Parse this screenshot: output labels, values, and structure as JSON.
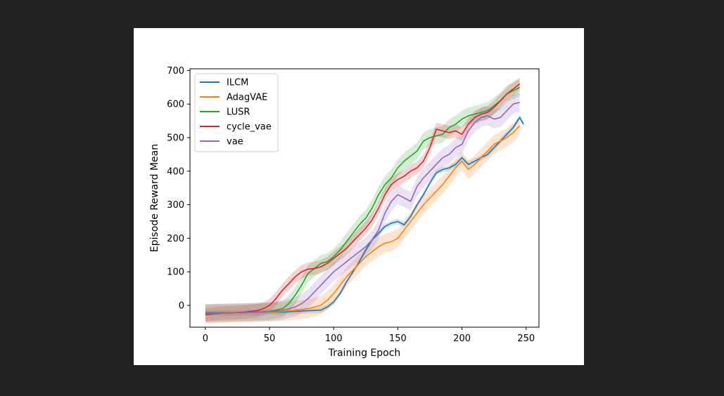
{
  "chart_data": {
    "type": "line",
    "title": "",
    "xlabel": "Training Epoch",
    "ylabel": "Episode Reward Mean",
    "xlim": [
      -12,
      260
    ],
    "ylim": [
      -65,
      705
    ],
    "xticks": [
      0,
      50,
      100,
      150,
      200,
      250
    ],
    "yticks": [
      0,
      100,
      200,
      300,
      400,
      500,
      600,
      700
    ],
    "grid": false,
    "legend_position": "top-left",
    "series": [
      {
        "name": "ILCM",
        "color": "#1f77b4",
        "band": 8,
        "x": [
          0,
          10,
          20,
          30,
          40,
          50,
          60,
          70,
          80,
          90,
          95,
          100,
          105,
          110,
          115,
          120,
          125,
          130,
          135,
          140,
          145,
          150,
          155,
          160,
          165,
          170,
          175,
          180,
          185,
          190,
          195,
          200,
          205,
          210,
          215,
          220,
          225,
          230,
          235,
          240,
          245,
          248
        ],
        "y": [
          -22,
          -22,
          -23,
          -22,
          -21,
          -20,
          -20,
          -18,
          -16,
          -14,
          -5,
          10,
          35,
          70,
          100,
          130,
          165,
          195,
          215,
          235,
          245,
          250,
          240,
          265,
          300,
          330,
          365,
          395,
          405,
          410,
          420,
          440,
          420,
          430,
          440,
          450,
          470,
          490,
          510,
          530,
          560,
          540
        ]
      },
      {
        "name": "AdagVAE",
        "color": "#ff7f0e",
        "band": 28,
        "x": [
          0,
          10,
          20,
          30,
          40,
          50,
          60,
          70,
          80,
          90,
          95,
          100,
          105,
          110,
          115,
          120,
          125,
          130,
          135,
          140,
          145,
          150,
          155,
          160,
          165,
          170,
          175,
          180,
          185,
          190,
          195,
          200,
          205,
          210,
          215,
          220,
          225,
          230,
          235,
          240,
          245
        ],
        "y": [
          -25,
          -24,
          -23,
          -22,
          -21,
          -20,
          -18,
          -15,
          -10,
          0,
          15,
          35,
          60,
          85,
          105,
          125,
          145,
          160,
          175,
          185,
          190,
          200,
          225,
          250,
          275,
          300,
          320,
          340,
          360,
          385,
          410,
          430,
          405,
          420,
          440,
          460,
          480,
          490,
          500,
          515,
          535
        ]
      },
      {
        "name": "LUSR",
        "color": "#2ca02c",
        "band": 25,
        "x": [
          0,
          10,
          20,
          30,
          40,
          50,
          60,
          65,
          70,
          75,
          80,
          85,
          90,
          95,
          100,
          105,
          110,
          115,
          120,
          125,
          130,
          135,
          140,
          145,
          150,
          155,
          160,
          165,
          170,
          175,
          180,
          185,
          190,
          195,
          200,
          205,
          210,
          215,
          220,
          225,
          230,
          235,
          240,
          245
        ],
        "y": [
          -22,
          -22,
          -22,
          -21,
          -20,
          -18,
          -10,
          5,
          30,
          60,
          95,
          110,
          125,
          130,
          145,
          165,
          190,
          215,
          240,
          260,
          290,
          330,
          360,
          380,
          410,
          430,
          445,
          460,
          490,
          500,
          505,
          510,
          530,
          540,
          555,
          565,
          570,
          575,
          580,
          595,
          610,
          630,
          640,
          650
        ]
      },
      {
        "name": "cycle_vae",
        "color": "#d62728",
        "band": 20,
        "x": [
          0,
          10,
          20,
          30,
          40,
          45,
          50,
          55,
          60,
          65,
          70,
          75,
          80,
          85,
          90,
          95,
          100,
          105,
          110,
          115,
          120,
          125,
          130,
          135,
          140,
          145,
          150,
          155,
          160,
          165,
          170,
          175,
          180,
          185,
          190,
          195,
          200,
          205,
          210,
          215,
          220,
          225,
          230,
          235,
          240,
          245
        ],
        "y": [
          -28,
          -24,
          -22,
          -20,
          -16,
          -10,
          0,
          20,
          45,
          65,
          85,
          100,
          108,
          110,
          115,
          125,
          140,
          155,
          170,
          190,
          210,
          230,
          255,
          290,
          330,
          360,
          375,
          385,
          400,
          410,
          430,
          470,
          525,
          520,
          515,
          520,
          510,
          540,
          560,
          570,
          575,
          590,
          610,
          630,
          645,
          660
        ]
      },
      {
        "name": "vae",
        "color": "#9467bd",
        "band": 28,
        "x": [
          0,
          10,
          20,
          30,
          40,
          50,
          60,
          70,
          75,
          80,
          85,
          90,
          95,
          100,
          105,
          110,
          115,
          120,
          125,
          130,
          135,
          140,
          145,
          150,
          155,
          160,
          165,
          170,
          175,
          180,
          185,
          190,
          195,
          200,
          205,
          210,
          215,
          220,
          225,
          230,
          235,
          240,
          245
        ],
        "y": [
          -25,
          -23,
          -22,
          -21,
          -20,
          -19,
          -15,
          -5,
          5,
          20,
          40,
          60,
          80,
          100,
          115,
          130,
          145,
          160,
          175,
          195,
          225,
          275,
          310,
          330,
          320,
          310,
          355,
          380,
          400,
          420,
          440,
          450,
          470,
          480,
          520,
          545,
          560,
          565,
          555,
          560,
          580,
          600,
          605
        ]
      }
    ]
  }
}
